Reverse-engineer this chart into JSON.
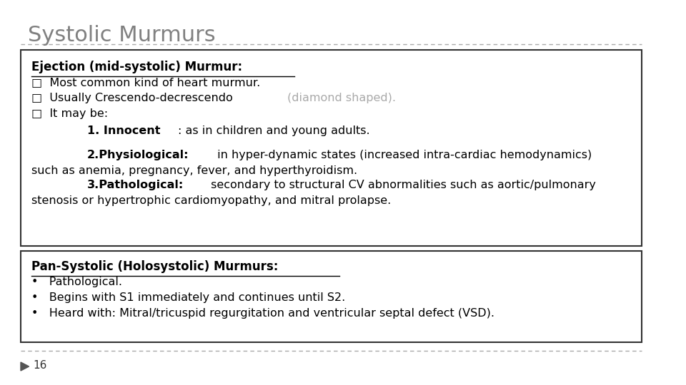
{
  "title": "Systolic Murmurs",
  "title_color": "#808080",
  "title_fontsize": 22,
  "bg_color": "#ffffff",
  "box_edge_color": "#333333",
  "page_num": "16",
  "box1_lines": [
    {
      "text": "Ejection (mid-systolic) Murmur:",
      "bold": true,
      "underline": true,
      "indent": 0,
      "size": 12,
      "color": "#000000",
      "suffix": "",
      "suffix_color": "#000000",
      "suffix_bold": false
    },
    {
      "text": "□  Most common kind of heart murmur.",
      "bold": false,
      "underline": false,
      "indent": 0,
      "size": 11.5,
      "color": "#000000",
      "suffix": "",
      "suffix_color": "#000000",
      "suffix_bold": false
    },
    {
      "text": "□  Usually Crescendo-decrescendo ",
      "bold": false,
      "underline": false,
      "indent": 0,
      "size": 11.5,
      "color": "#000000",
      "suffix": "(diamond shaped).",
      "suffix_color": "#aaaaaa",
      "suffix_bold": false
    },
    {
      "text": "□  It may be:",
      "bold": false,
      "underline": false,
      "indent": 0,
      "size": 11.5,
      "color": "#000000",
      "suffix": "",
      "suffix_color": "#000000",
      "suffix_bold": false
    },
    {
      "text": "1. Innocent",
      "bold": true,
      "underline": false,
      "indent": 1,
      "size": 11.5,
      "color": "#000000",
      "suffix": ": as in children and young adults.",
      "suffix_color": "#000000",
      "suffix_bold": false
    },
    {
      "text": "2.Physiological:",
      "bold": true,
      "underline": false,
      "indent": 1,
      "size": 11.5,
      "color": "#000000",
      "suffix": " in hyper-dynamic states (increased intra-cardiac hemodynamics)",
      "suffix_color": "#000000",
      "suffix_bold": false,
      "extra_line": "such as anemia, pregnancy, fever, and hyperthyroidism."
    },
    {
      "text": "3.Pathological:",
      "bold": true,
      "underline": false,
      "indent": 1,
      "size": 11.5,
      "color": "#000000",
      "suffix": " secondary to structural CV abnormalities such as aortic/pulmonary",
      "suffix_color": "#000000",
      "suffix_bold": false,
      "extra_line": "stenosis or hypertrophic cardiomyopathy, and mitral prolapse."
    }
  ],
  "box2_lines": [
    {
      "text": "Pan-Systolic (Holosystolic) Murmurs:",
      "bold": true,
      "underline": true,
      "indent": 0,
      "size": 12,
      "color": "#000000"
    },
    {
      "text": "•   Pathological.",
      "bold": false,
      "underline": false,
      "indent": 0,
      "size": 11.5,
      "color": "#000000"
    },
    {
      "text": "•   Begins with S1 immediately and continues until S2.",
      "bold": false,
      "underline": false,
      "indent": 0,
      "size": 11.5,
      "color": "#000000"
    },
    {
      "text": "•   Heard with: Mitral/tricuspid regurgitation and ventricular septal defect (VSD).",
      "bold": false,
      "underline": false,
      "indent": 0,
      "size": 11.5,
      "color": "#000000"
    }
  ]
}
